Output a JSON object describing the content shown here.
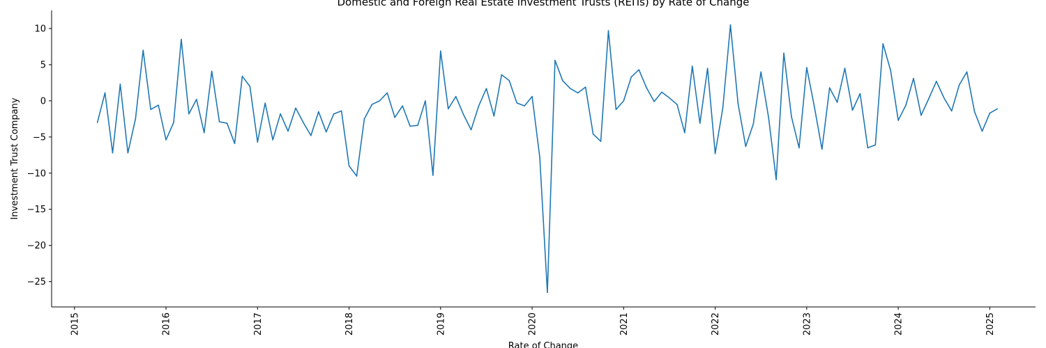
{
  "chart_data": {
    "type": "line",
    "title": "Domestic and Foreign Real Estate Investment Trusts (REITs) by Rate of Change",
    "xlabel": "Rate of Change",
    "ylabel": "Investment Trust Company",
    "xlim": [
      "2014-10-01",
      "2025-07-01"
    ],
    "ylim": [
      -28.5,
      12.5
    ],
    "grid": false,
    "legend": "none",
    "line_color": "#1f77b4",
    "x_ticks": [
      "2015",
      "2016",
      "2017",
      "2018",
      "2019",
      "2020",
      "2021",
      "2022",
      "2023",
      "2024",
      "2025"
    ],
    "y_ticks": [
      10,
      5,
      0,
      -5,
      -10,
      -15,
      -20,
      -25
    ],
    "y_tick_labels": [
      "10",
      "5",
      "0",
      "−5",
      "−10",
      "−15",
      "−20",
      "−25"
    ],
    "series": [
      {
        "x": [
          "2015-04",
          "2015-05",
          "2015-06",
          "2015-07",
          "2015-08",
          "2015-09",
          "2015-10",
          "2015-11",
          "2015-12",
          "2016-01",
          "2016-02",
          "2016-03",
          "2016-04",
          "2016-05",
          "2016-06",
          "2016-07",
          "2016-08",
          "2016-09",
          "2016-10",
          "2016-11",
          "2016-12",
          "2017-01",
          "2017-02",
          "2017-03",
          "2017-04",
          "2017-05",
          "2017-06",
          "2017-07",
          "2017-08",
          "2017-09",
          "2017-10",
          "2017-11",
          "2017-12",
          "2018-01",
          "2018-02",
          "2018-03",
          "2018-04",
          "2018-05",
          "2018-06",
          "2018-07",
          "2018-08",
          "2018-09",
          "2018-10",
          "2018-11",
          "2018-12",
          "2019-01",
          "2019-02",
          "2019-03",
          "2019-04",
          "2019-05",
          "2019-06",
          "2019-07",
          "2019-08",
          "2019-09",
          "2019-10",
          "2019-11",
          "2019-12",
          "2020-01",
          "2020-02",
          "2020-03",
          "2020-04",
          "2020-05",
          "2020-06",
          "2020-07",
          "2020-08",
          "2020-09",
          "2020-10",
          "2020-11",
          "2020-12",
          "2021-01",
          "2021-02",
          "2021-03",
          "2021-04",
          "2021-05",
          "2021-06",
          "2021-07",
          "2021-08",
          "2021-09",
          "2021-10",
          "2021-11",
          "2021-12",
          "2022-01",
          "2022-02",
          "2022-03",
          "2022-04",
          "2022-05",
          "2022-06",
          "2022-07",
          "2022-08",
          "2022-09",
          "2022-10",
          "2022-11",
          "2022-12",
          "2023-01",
          "2023-02",
          "2023-03",
          "2023-04",
          "2023-05",
          "2023-06",
          "2023-07",
          "2023-08",
          "2023-09",
          "2023-10",
          "2023-11",
          "2023-12",
          "2024-01",
          "2024-02",
          "2024-03",
          "2024-04",
          "2024-05",
          "2024-06",
          "2024-07",
          "2024-08",
          "2024-09",
          "2024-10",
          "2024-11",
          "2024-12",
          "2025-01",
          "2025-02"
        ],
        "values": [
          -3.0,
          1.1,
          -7.2,
          2.3,
          -7.2,
          -2.5,
          7.0,
          -1.2,
          -0.6,
          -5.4,
          -3.0,
          8.5,
          -1.8,
          0.2,
          -4.4,
          4.1,
          -2.9,
          -3.1,
          -5.9,
          3.4,
          2.0,
          -5.7,
          -0.3,
          -5.4,
          -1.8,
          -4.2,
          -1.0,
          -3.0,
          -4.8,
          -1.5,
          -4.3,
          -1.8,
          -1.4,
          -9.0,
          -10.4,
          -2.5,
          -0.5,
          0.0,
          1.1,
          -2.3,
          -0.7,
          -3.5,
          -3.4,
          0.0,
          -10.3,
          6.9,
          -1.1,
          0.6,
          -1.9,
          -4.0,
          -0.7,
          1.7,
          -2.1,
          3.6,
          2.8,
          -0.3,
          -0.7,
          0.6,
          -7.8,
          -26.5,
          5.6,
          2.8,
          1.7,
          1.1,
          1.9,
          -4.6,
          -5.6,
          9.7,
          -1.2,
          0.0,
          3.3,
          4.3,
          1.8,
          -0.1,
          1.2,
          0.4,
          -0.5,
          -4.4,
          4.8,
          -3.1,
          4.5,
          -7.3,
          -1.0,
          10.5,
          -0.4,
          -6.3,
          -3.2,
          4.0,
          -2.3,
          -10.9,
          6.6,
          -2.2,
          -6.5,
          4.6,
          -0.8,
          -6.7,
          1.8,
          -0.2,
          4.5,
          -1.3,
          1.0,
          -6.5,
          -6.1,
          7.9,
          4.2,
          -2.7,
          -0.6,
          3.1,
          -2.0,
          0.3,
          2.7,
          0.4,
          -1.4,
          2.2,
          4.0,
          -1.5,
          -4.2,
          -1.7,
          -1.1
        ]
      }
    ]
  }
}
